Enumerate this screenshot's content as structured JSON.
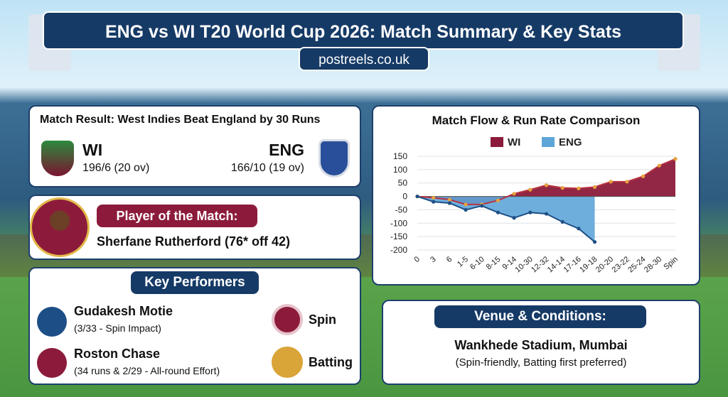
{
  "header": {
    "title": "ENG vs WI T20 World Cup 2026: Match Summary & Key Stats",
    "subtitle": "postreels.co.uk"
  },
  "result": {
    "heading": "Match Result: West Indies Beat England by 30 Runs",
    "teams": [
      {
        "name": "WI",
        "score": "196/6 (20 ov)"
      },
      {
        "name": "ENG",
        "score": "166/10 (19 ov)"
      }
    ]
  },
  "player": {
    "heading": "Player of the Match:",
    "text": "Sherfane Rutherford (76* off 42)"
  },
  "performers": {
    "heading": "Key Performers",
    "items": [
      {
        "name": "Gudakesh Motie",
        "detail": "(3/33 - Spin Impact)"
      },
      {
        "name": "Roston Chase",
        "detail": "(34 runs & 2/29 - All-round Effort)"
      }
    ],
    "tags": [
      "Spin",
      "Batting"
    ]
  },
  "venue": {
    "heading": "Venue & Conditions:",
    "name": "Wankhede Stadium, Mumbai",
    "note": "(Spin-friendly, Batting first preferred)"
  },
  "chart_data": {
    "type": "area",
    "title": "Match Flow & Run Rate Comparison",
    "categories": [
      "0",
      "3",
      "6",
      "1-5",
      "6-10",
      "8-15",
      "9-14",
      "10-30",
      "12-32",
      "14-14",
      "17-16",
      "19-18",
      "20-20",
      "23-22",
      "25-24",
      "28-30",
      "Spin"
    ],
    "series": [
      {
        "name": "WI",
        "color": "#8c1b3b",
        "values": [
          0,
          -5,
          -12,
          -30,
          -30,
          -15,
          10,
          25,
          42,
          32,
          30,
          35,
          55,
          55,
          75,
          115,
          140
        ]
      },
      {
        "name": "ENG",
        "color": "#5ea5d8",
        "values": [
          0,
          -20,
          -25,
          -50,
          -35,
          -60,
          -80,
          -60,
          -65,
          -95,
          -120,
          -170,
          null,
          null,
          null,
          null,
          null
        ]
      }
    ],
    "ylim": [
      -200,
      150
    ],
    "yticks": [
      150,
      100,
      50,
      0,
      -50,
      -100,
      -150,
      -200
    ],
    "grid": true,
    "legend": "top"
  }
}
